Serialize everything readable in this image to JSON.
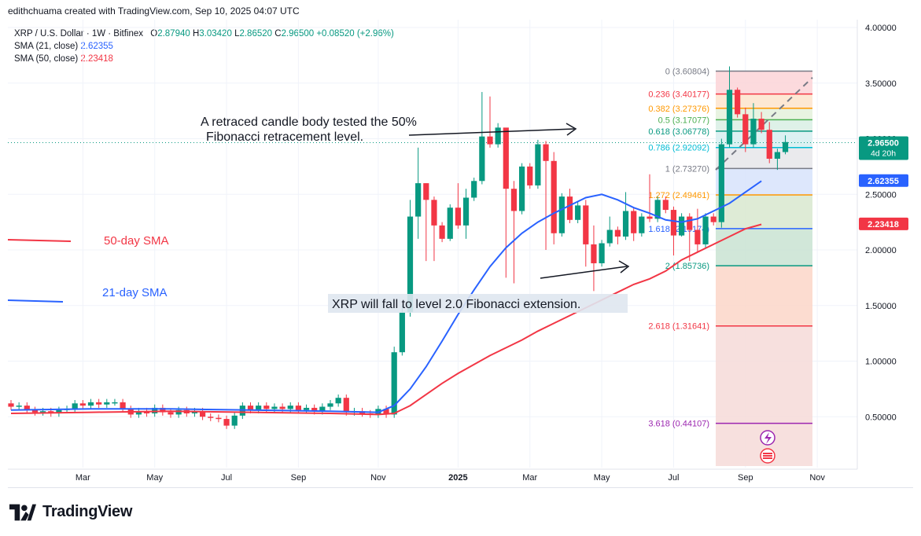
{
  "header": {
    "created_by": "edithchuama created with TradingView.com, Sep 10, 2025 04:07 UTC"
  },
  "legend": {
    "symbol": "XRP / U.S. Dollar · 1W · Bitfinex",
    "o_label": "O",
    "o_value": "2.87940",
    "h_label": "H",
    "h_value": "3.03420",
    "l_label": "L",
    "l_value": "2.86520",
    "c_label": "C",
    "c_value": "2.96500",
    "change": "+0.08520 (+2.96%)",
    "sma21_label": "SMA (21, close)",
    "sma21_value": "2.62355",
    "sma50_label": "SMA (50, close)",
    "sma50_value": "2.23418"
  },
  "colors": {
    "up": "#089981",
    "down": "#f23645",
    "sma21": "#2962ff",
    "sma50": "#f23645",
    "grid": "#f0f3fa",
    "text": "#131722"
  },
  "footer": {
    "logo_text": "TradingView",
    "logo_icon": "tradingview-logo-icon"
  },
  "chart_data": {
    "type": "candlestick",
    "title": "XRP / U.S. Dollar · 1W · Bitfinex",
    "ylim": [
      0.0,
      4.1
    ],
    "yticks": [
      "4.00000",
      "3.50000",
      "3.00000",
      "2.50000",
      "2.00000",
      "1.50000",
      "1.00000",
      "0.50000"
    ],
    "ytick_values": [
      4.0,
      3.5,
      3.0,
      2.5,
      2.0,
      1.5,
      1.0,
      0.5
    ],
    "xticks": [
      {
        "label": "Mar",
        "i": 9
      },
      {
        "label": "May",
        "i": 18
      },
      {
        "label": "Jul",
        "i": 27
      },
      {
        "label": "Sep",
        "i": 36
      },
      {
        "label": "Nov",
        "i": 46
      },
      {
        "label": "2025",
        "i": 56
      },
      {
        "label": "Mar",
        "i": 65
      },
      {
        "label": "May",
        "i": 74
      },
      {
        "label": "Jul",
        "i": 83
      },
      {
        "label": "Sep",
        "i": 92
      },
      {
        "label": "Nov",
        "i": 101
      }
    ],
    "candles": [
      [
        0.62,
        0.59
      ],
      [
        0.59,
        0.6
      ],
      [
        0.6,
        0.56
      ],
      [
        0.56,
        0.54
      ],
      [
        0.54,
        0.55
      ],
      [
        0.55,
        0.53
      ],
      [
        0.53,
        0.56
      ],
      [
        0.56,
        0.57
      ],
      [
        0.57,
        0.62
      ],
      [
        0.62,
        0.6
      ],
      [
        0.6,
        0.63
      ],
      [
        0.63,
        0.61
      ],
      [
        0.61,
        0.63
      ],
      [
        0.63,
        0.63
      ],
      [
        0.63,
        0.57
      ],
      [
        0.57,
        0.52
      ],
      [
        0.52,
        0.55
      ],
      [
        0.55,
        0.53
      ],
      [
        0.53,
        0.58
      ],
      [
        0.58,
        0.54
      ],
      [
        0.54,
        0.52
      ],
      [
        0.52,
        0.56
      ],
      [
        0.56,
        0.53
      ],
      [
        0.53,
        0.55
      ],
      [
        0.55,
        0.5
      ],
      [
        0.5,
        0.49
      ],
      [
        0.49,
        0.48
      ],
      [
        0.48,
        0.42
      ],
      [
        0.42,
        0.51
      ],
      [
        0.51,
        0.6
      ],
      [
        0.6,
        0.56
      ],
      [
        0.56,
        0.6
      ],
      [
        0.6,
        0.57
      ],
      [
        0.57,
        0.59
      ],
      [
        0.59,
        0.57
      ],
      [
        0.57,
        0.6
      ],
      [
        0.6,
        0.56
      ],
      [
        0.56,
        0.58
      ],
      [
        0.58,
        0.55
      ],
      [
        0.55,
        0.59
      ],
      [
        0.59,
        0.62
      ],
      [
        0.62,
        0.67
      ],
      [
        0.67,
        0.54
      ],
      [
        0.54,
        0.55
      ],
      [
        0.55,
        0.53
      ],
      [
        0.53,
        0.52
      ],
      [
        0.52,
        0.57
      ],
      [
        0.57,
        0.52
      ],
      [
        0.52,
        1.08
      ],
      [
        1.08,
        1.44
      ],
      [
        1.44,
        2.3
      ],
      [
        2.3,
        2.6
      ],
      [
        2.6,
        2.45
      ],
      [
        2.45,
        2.22
      ],
      [
        2.22,
        2.1
      ],
      [
        2.1,
        2.38
      ],
      [
        2.38,
        2.22
      ],
      [
        2.22,
        2.47
      ],
      [
        2.47,
        2.62
      ],
      [
        2.62,
        3.02
      ],
      [
        3.02,
        2.95
      ],
      [
        2.95,
        3.1
      ],
      [
        3.1,
        2.55
      ],
      [
        2.55,
        2.35
      ],
      [
        2.35,
        2.75
      ],
      [
        2.75,
        2.58
      ],
      [
        2.58,
        2.95
      ],
      [
        2.95,
        2.8
      ],
      [
        2.8,
        2.15
      ],
      [
        2.15,
        2.48
      ],
      [
        2.48,
        2.27
      ],
      [
        2.27,
        2.4
      ],
      [
        2.4,
        2.05
      ],
      [
        2.05,
        1.88
      ],
      [
        1.88,
        2.06
      ],
      [
        2.06,
        2.18
      ],
      [
        2.18,
        2.12
      ],
      [
        2.12,
        2.35
      ],
      [
        2.35,
        2.15
      ],
      [
        2.15,
        2.3
      ],
      [
        2.3,
        2.28
      ],
      [
        2.28,
        2.45
      ],
      [
        2.45,
        2.36
      ],
      [
        2.36,
        2.13
      ],
      [
        2.13,
        2.3
      ],
      [
        2.3,
        2.18
      ],
      [
        2.18,
        2.05
      ],
      [
        2.05,
        2.3
      ],
      [
        2.3,
        2.25
      ],
      [
        2.25,
        2.95
      ],
      [
        2.95,
        3.44
      ],
      [
        3.44,
        3.22
      ],
      [
        3.22,
        2.95
      ],
      [
        2.95,
        3.18
      ],
      [
        3.18,
        3.08
      ],
      [
        3.08,
        2.82
      ],
      [
        2.82,
        2.88
      ],
      [
        2.88,
        2.97
      ]
    ],
    "sma21_points": [
      [
        0,
        0.56
      ],
      [
        10,
        0.57
      ],
      [
        20,
        0.57
      ],
      [
        30,
        0.56
      ],
      [
        40,
        0.55
      ],
      [
        46,
        0.54
      ],
      [
        48,
        0.6
      ],
      [
        50,
        0.75
      ],
      [
        52,
        0.95
      ],
      [
        54,
        1.18
      ],
      [
        56,
        1.42
      ],
      [
        58,
        1.64
      ],
      [
        60,
        1.85
      ],
      [
        62,
        2.02
      ],
      [
        64,
        2.15
      ],
      [
        66,
        2.25
      ],
      [
        68,
        2.33
      ],
      [
        70,
        2.4
      ],
      [
        72,
        2.47
      ],
      [
        74,
        2.5
      ],
      [
        76,
        2.45
      ],
      [
        78,
        2.38
      ],
      [
        80,
        2.33
      ],
      [
        82,
        2.27
      ],
      [
        84,
        2.25
      ],
      [
        86,
        2.28
      ],
      [
        88,
        2.35
      ],
      [
        90,
        2.42
      ],
      [
        92,
        2.52
      ],
      [
        94,
        2.62
      ]
    ],
    "sma50_points": [
      [
        0,
        0.53
      ],
      [
        10,
        0.54
      ],
      [
        20,
        0.55
      ],
      [
        30,
        0.54
      ],
      [
        40,
        0.53
      ],
      [
        46,
        0.52
      ],
      [
        48,
        0.53
      ],
      [
        50,
        0.6
      ],
      [
        52,
        0.7
      ],
      [
        54,
        0.8
      ],
      [
        56,
        0.89
      ],
      [
        58,
        0.97
      ],
      [
        60,
        1.05
      ],
      [
        62,
        1.12
      ],
      [
        64,
        1.19
      ],
      [
        66,
        1.27
      ],
      [
        68,
        1.34
      ],
      [
        70,
        1.41
      ],
      [
        72,
        1.48
      ],
      [
        74,
        1.55
      ],
      [
        76,
        1.62
      ],
      [
        78,
        1.69
      ],
      [
        80,
        1.74
      ],
      [
        82,
        1.81
      ],
      [
        84,
        1.91
      ],
      [
        86,
        1.98
      ],
      [
        88,
        2.05
      ],
      [
        90,
        2.12
      ],
      [
        92,
        2.19
      ],
      [
        94,
        2.23
      ]
    ],
    "fibonacci": [
      {
        "label": "0 (3.60804)",
        "value": 3.60804,
        "color": "#787b86"
      },
      {
        "label": "0.236 (3.40177)",
        "value": 3.40177,
        "color": "#f23645"
      },
      {
        "label": "0.382 (3.27376)",
        "value": 3.27376,
        "color": "#ff9800"
      },
      {
        "label": "0.5 (3.17077)",
        "value": 3.17077,
        "color": "#4caf50"
      },
      {
        "label": "0.618 (3.06778)",
        "value": 3.06778,
        "color": "#089981"
      },
      {
        "label": "0.786 (2.92092)",
        "value": 2.92092,
        "color": "#00bcd4"
      },
      {
        "label": "1 (2.73270)",
        "value": 2.7327,
        "color": "#787b86"
      },
      {
        "label": "1.272 (2.49461)",
        "value": 2.49461,
        "color": "#ff9800"
      },
      {
        "label": "1.618 (2.19174)",
        "value": 2.19174,
        "color": "#2962ff"
      },
      {
        "label": "2 (1.85736)",
        "value": 1.85736,
        "color": "#089981"
      },
      {
        "label": "2.618 (1.31641)",
        "value": 1.31641,
        "color": "#f23645"
      },
      {
        "label": "3.618 (0.44107)",
        "value": 0.44107,
        "color": "#9c27b0"
      }
    ],
    "price_labels": [
      {
        "value": 2.965,
        "text": "2.96500",
        "sub": "4d 20h",
        "color": "#089981"
      },
      {
        "value": 2.62355,
        "text": "2.62355",
        "color": "#2962ff"
      },
      {
        "value": 2.23418,
        "text": "2.23418",
        "color": "#f23645"
      }
    ],
    "annotations": {
      "top_text_line1": "A retraced candle body tested the 50%",
      "top_text_line2": "Fibonacci retracement level.",
      "bottom_text": "XRP   will fall to level 2.0 Fibonacci extension.",
      "sma50_label": "50-day SMA",
      "sma21_label": "21-day SMA"
    }
  }
}
